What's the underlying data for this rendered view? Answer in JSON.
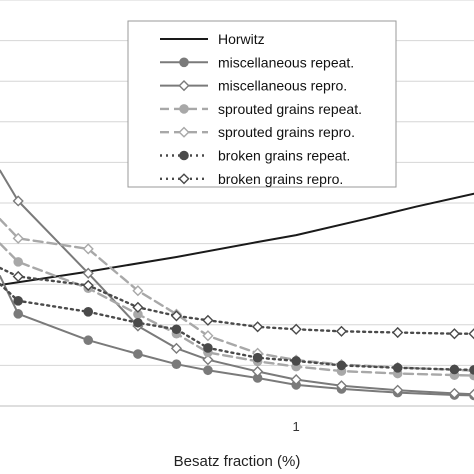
{
  "chart_data": {
    "type": "line",
    "title": "",
    "xlabel": "Besatz fraction (%)",
    "ylabel": "",
    "x_scale": "log",
    "xlim": [
      0.18,
      2.8
    ],
    "ylim": [
      0,
      100
    ],
    "x_ticks": [
      1
    ],
    "x_tick_labels": [
      "1"
    ],
    "grid": "horizontal",
    "legend_position": "top-right",
    "colors": {
      "Horwitz": "#1a1a1a",
      "miscellaneous": "#7a7a7a",
      "sprouted": "#a8a8a8",
      "broken": "#4a4a4a"
    },
    "series": [
      {
        "name": "Horwitz",
        "style": "solid",
        "marker": "none",
        "x": [
          0.18,
          0.3,
          0.5,
          0.8,
          1.0,
          1.5,
          2.0,
          2.8
        ],
        "y": [
          29.8,
          33.1,
          36.7,
          40.4,
          42.1,
          46.1,
          49.1,
          52.3
        ]
      },
      {
        "name": "miscellaneous repeat.",
        "style": "solid",
        "marker": "circle-filled",
        "x": [
          0.18,
          0.2,
          0.3,
          0.4,
          0.5,
          0.6,
          0.8,
          1.0,
          1.3,
          1.8,
          2.5,
          2.8
        ],
        "y": [
          32,
          22.7,
          16.2,
          12.8,
          10.3,
          8.8,
          6.9,
          5.2,
          4.2,
          3.3,
          2.7,
          2.6
        ]
      },
      {
        "name": "miscellaneous repro.",
        "style": "solid",
        "marker": "diamond-open",
        "x": [
          0.18,
          0.2,
          0.3,
          0.4,
          0.5,
          0.6,
          0.8,
          1.0,
          1.3,
          1.8,
          2.5,
          2.8
        ],
        "y": [
          58,
          50.5,
          32.7,
          19.7,
          14.2,
          11.4,
          8.5,
          6.5,
          5.0,
          3.9,
          3.1,
          2.9
        ]
      },
      {
        "name": "sprouted grains repeat.",
        "style": "dashed",
        "marker": "circle-filled",
        "x": [
          0.18,
          0.2,
          0.3,
          0.4,
          0.5,
          0.6,
          0.8,
          1.0,
          1.3,
          1.8,
          2.5,
          2.8
        ],
        "y": [
          40,
          35.5,
          29.0,
          22.6,
          17.8,
          13.2,
          11.0,
          9.7,
          8.6,
          8.0,
          7.6,
          7.5
        ]
      },
      {
        "name": "sprouted grains repro.",
        "style": "dashed",
        "marker": "diamond-open",
        "x": [
          0.18,
          0.2,
          0.3,
          0.4,
          0.5,
          0.6,
          0.8,
          1.0,
          1.3,
          1.8,
          2.5,
          2.8
        ],
        "y": [
          46,
          41.3,
          38.7,
          28.4,
          22.6,
          17.3,
          13.0,
          11.3,
          10.2,
          9.5,
          8.9,
          8.7
        ]
      },
      {
        "name": "broken grains repeat.",
        "style": "dotted",
        "marker": "circle-filled",
        "x": [
          0.18,
          0.2,
          0.3,
          0.4,
          0.5,
          0.6,
          0.8,
          1.0,
          1.3,
          1.8,
          2.5,
          2.8
        ],
        "y": [
          30,
          25.9,
          23.2,
          20.5,
          18.9,
          14.3,
          11.9,
          11.1,
          10.0,
          9.4,
          9.0,
          8.9
        ]
      },
      {
        "name": "broken grains repro.",
        "style": "dotted",
        "marker": "diamond-open",
        "x": [
          0.18,
          0.2,
          0.3,
          0.4,
          0.5,
          0.6,
          0.8,
          1.0,
          1.3,
          1.8,
          2.5,
          2.8
        ],
        "y": [
          34,
          31.9,
          29.7,
          24.3,
          22.2,
          21.1,
          19.5,
          18.9,
          18.4,
          18.1,
          17.8,
          17.8
        ]
      }
    ]
  }
}
